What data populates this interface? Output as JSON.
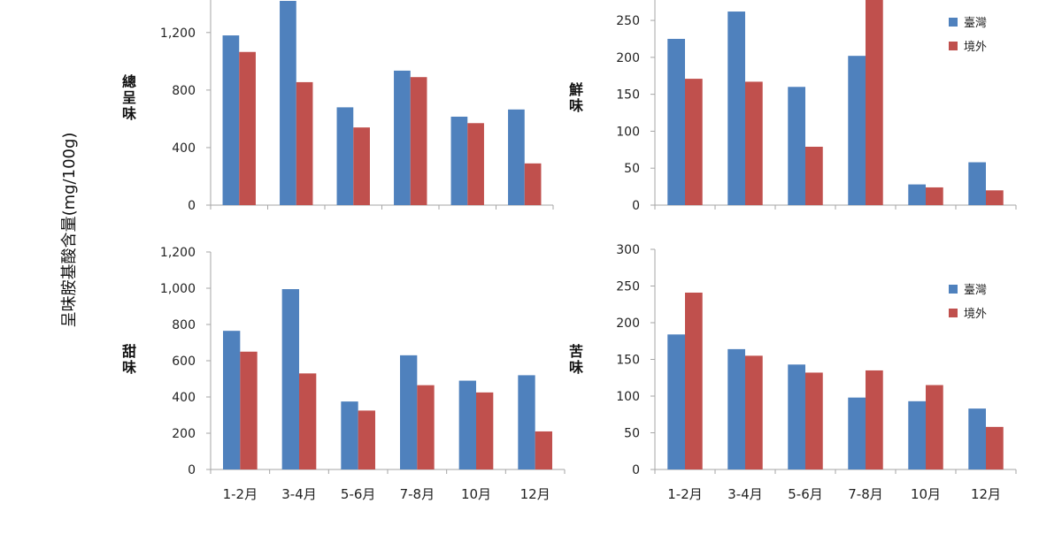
{
  "shared_ylabel": "呈味胺基酸含量(mg/100g)",
  "colors": {
    "taiwan": "#4f81bd",
    "overseas": "#c0504d",
    "axis": "#a6a6a6"
  },
  "chart_data": [
    {
      "type": "bar",
      "ylabel": "總呈味",
      "categories": [
        "1-2月",
        "3-4月",
        "5-6月",
        "7-8月",
        "10月",
        "12月"
      ],
      "ylim": [
        0,
        1500
      ],
      "yticks": [
        0,
        400,
        800,
        1200
      ],
      "ytick_labels": [
        "0",
        "400",
        "800",
        "1,200"
      ],
      "show_category_labels": false,
      "show_legend": false,
      "series": [
        {
          "name": "臺灣",
          "values": [
            1180,
            1420,
            680,
            935,
            615,
            665
          ]
        },
        {
          "name": "境外",
          "values": [
            1065,
            855,
            540,
            890,
            570,
            290
          ]
        }
      ]
    },
    {
      "type": "bar",
      "ylabel": "鮮味",
      "categories": [
        "1-2月",
        "3-4月",
        "5-6月",
        "7-8月",
        "10月",
        "12月"
      ],
      "ylim": [
        0,
        280
      ],
      "yticks": [
        0,
        50,
        100,
        150,
        200,
        250
      ],
      "ytick_labels": [
        "0",
        "50",
        "100",
        "150",
        "200",
        "250"
      ],
      "show_category_labels": false,
      "show_legend": true,
      "legend_position": "top-right",
      "series": [
        {
          "name": "臺灣",
          "values": [
            225,
            262,
            160,
            202,
            28,
            58
          ]
        },
        {
          "name": "境外",
          "values": [
            171,
            167,
            79,
            285,
            24,
            20
          ]
        }
      ]
    },
    {
      "type": "bar",
      "ylabel": "甜味",
      "categories": [
        "1-2月",
        "3-4月",
        "5-6月",
        "7-8月",
        "10月",
        "12月"
      ],
      "ylim": [
        0,
        1200
      ],
      "yticks": [
        0,
        200,
        400,
        600,
        800,
        1000,
        1200
      ],
      "ytick_labels": [
        "0",
        "200",
        "400",
        "600",
        "800",
        "1,000",
        "1,200"
      ],
      "show_category_labels": true,
      "show_legend": false,
      "series": [
        {
          "name": "臺灣",
          "values": [
            765,
            995,
            375,
            630,
            490,
            520
          ]
        },
        {
          "name": "境外",
          "values": [
            650,
            530,
            325,
            465,
            425,
            210
          ]
        }
      ]
    },
    {
      "type": "bar",
      "ylabel": "苦味",
      "categories": [
        "1-2月",
        "3-4月",
        "5-6月",
        "7-8月",
        "10月",
        "12月"
      ],
      "ylim": [
        0,
        300
      ],
      "yticks": [
        0,
        50,
        100,
        150,
        200,
        250,
        300
      ],
      "ytick_labels": [
        "0",
        "50",
        "100",
        "150",
        "200",
        "250",
        "300"
      ],
      "show_category_labels": true,
      "show_legend": true,
      "legend_position": "top-right",
      "series": [
        {
          "name": "臺灣",
          "values": [
            184,
            164,
            143,
            98,
            93,
            83
          ]
        },
        {
          "name": "境外",
          "values": [
            241,
            155,
            132,
            135,
            115,
            58
          ]
        }
      ]
    }
  ]
}
